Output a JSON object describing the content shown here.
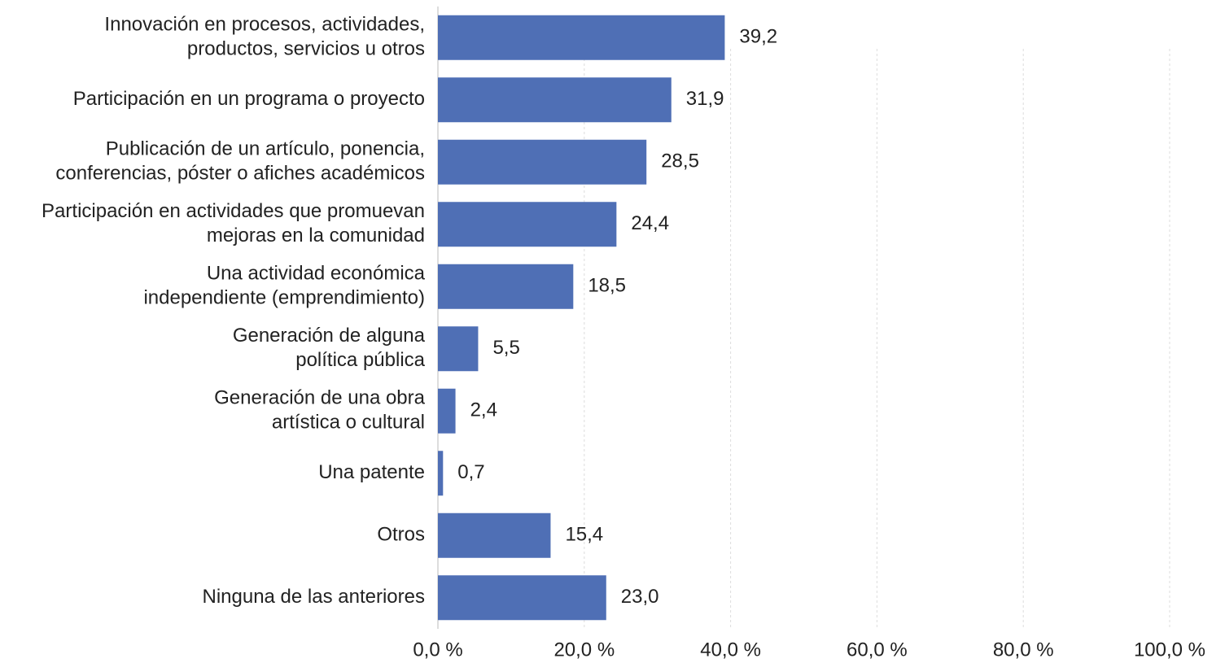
{
  "chart_data": {
    "type": "bar",
    "orientation": "horizontal",
    "categories": [
      "Innovación en procesos, actividades,\nproductos, servicios u otros",
      "Participación en un programa o proyecto",
      "Publicación de un artículo, ponencia,\nconferencias, póster o afiches académicos",
      "Participación en actividades que promuevan\nmejoras en la comunidad",
      "Una actividad económica\nindependiente (emprendimiento)",
      "Generación de alguna\npolítica pública",
      "Generación de una obra\nartística o cultural",
      "Una patente",
      "Otros",
      "Ninguna de las anteriores"
    ],
    "values": [
      39.2,
      31.9,
      28.5,
      24.4,
      18.5,
      5.5,
      2.4,
      0.7,
      15.4,
      23.0
    ],
    "value_labels": [
      "39,2",
      "31,9",
      "28,5",
      "24,4",
      "18,5",
      "5,5",
      "2,4",
      "0,7",
      "15,4",
      "23,0"
    ],
    "color": "#4f6fb5",
    "xlim": [
      0,
      100
    ],
    "xticks": [
      {
        "value": 0,
        "label": "0,0 %"
      },
      {
        "value": 20,
        "label": "20,0 %"
      },
      {
        "value": 40,
        "label": "40,0 %"
      },
      {
        "value": 60,
        "label": "60,0 %"
      },
      {
        "value": 80,
        "label": "80,0 %"
      },
      {
        "value": 100,
        "label": "100,0 %"
      }
    ],
    "grid": true
  }
}
